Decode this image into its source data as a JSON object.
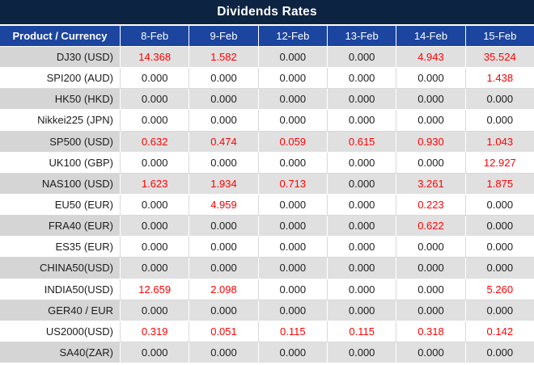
{
  "title": "Dividends Rates",
  "colors": {
    "title_bar": "#0d2342",
    "header_bg": "#1b459e",
    "stripe_gray_label": "#d5d5d5",
    "stripe_gray_value": "#e0e0e0",
    "grid_line": "#d9d9d9",
    "value_red": "#ff0000",
    "value_black": "#1c1c1c",
    "header_text": "#ffffff"
  },
  "table": {
    "product_header": "Product / Currency",
    "date_headers": [
      "8-Feb",
      "9-Feb",
      "12-Feb",
      "13-Feb",
      "14-Feb",
      "15-Feb"
    ],
    "rows": [
      {
        "product": "DJ30 (USD)",
        "values": [
          "14.368",
          "1.582",
          "0.000",
          "0.000",
          "4.943",
          "35.524"
        ],
        "red": [
          true,
          true,
          false,
          false,
          true,
          true
        ]
      },
      {
        "product": "SPI200 (AUD)",
        "values": [
          "0.000",
          "0.000",
          "0.000",
          "0.000",
          "0.000",
          "1.438"
        ],
        "red": [
          false,
          false,
          false,
          false,
          false,
          true
        ]
      },
      {
        "product": "HK50 (HKD)",
        "values": [
          "0.000",
          "0.000",
          "0.000",
          "0.000",
          "0.000",
          "0.000"
        ],
        "red": [
          false,
          false,
          false,
          false,
          false,
          false
        ]
      },
      {
        "product": "Nikkei225 (JPN)",
        "values": [
          "0.000",
          "0.000",
          "0.000",
          "0.000",
          "0.000",
          "0.000"
        ],
        "red": [
          false,
          false,
          false,
          false,
          false,
          false
        ]
      },
      {
        "product": "SP500 (USD)",
        "values": [
          "0.632",
          "0.474",
          "0.059",
          "0.615",
          "0.930",
          "1.043"
        ],
        "red": [
          true,
          true,
          true,
          true,
          true,
          true
        ]
      },
      {
        "product": "UK100 (GBP)",
        "values": [
          "0.000",
          "0.000",
          "0.000",
          "0.000",
          "0.000",
          "12.927"
        ],
        "red": [
          false,
          false,
          false,
          false,
          false,
          true
        ]
      },
      {
        "product": "NAS100 (USD)",
        "values": [
          "1.623",
          "1.934",
          "0.713",
          "0.000",
          "3.261",
          "1.875"
        ],
        "red": [
          true,
          true,
          true,
          false,
          true,
          true
        ]
      },
      {
        "product": "EU50 (EUR)",
        "values": [
          "0.000",
          "4.959",
          "0.000",
          "0.000",
          "0.223",
          "0.000"
        ],
        "red": [
          false,
          true,
          false,
          false,
          true,
          false
        ]
      },
      {
        "product": "FRA40 (EUR)",
        "values": [
          "0.000",
          "0.000",
          "0.000",
          "0.000",
          "0.622",
          "0.000"
        ],
        "red": [
          false,
          false,
          false,
          false,
          true,
          false
        ]
      },
      {
        "product": "ES35 (EUR)",
        "values": [
          "0.000",
          "0.000",
          "0.000",
          "0.000",
          "0.000",
          "0.000"
        ],
        "red": [
          false,
          false,
          false,
          false,
          false,
          false
        ]
      },
      {
        "product": "CHINA50(USD)",
        "values": [
          "0.000",
          "0.000",
          "0.000",
          "0.000",
          "0.000",
          "0.000"
        ],
        "red": [
          false,
          false,
          false,
          false,
          false,
          false
        ]
      },
      {
        "product": "INDIA50(USD)",
        "values": [
          "12.659",
          "2.098",
          "0.000",
          "0.000",
          "0.000",
          "5.260"
        ],
        "red": [
          true,
          true,
          false,
          false,
          false,
          true
        ]
      },
      {
        "product": "GER40 / EUR",
        "values": [
          "0.000",
          "0.000",
          "0.000",
          "0.000",
          "0.000",
          "0.000"
        ],
        "red": [
          false,
          false,
          false,
          false,
          false,
          false
        ]
      },
      {
        "product": "US2000(USD)",
        "values": [
          "0.319",
          "0.051",
          "0.115",
          "0.115",
          "0.318",
          "0.142"
        ],
        "red": [
          true,
          true,
          true,
          true,
          true,
          true
        ]
      },
      {
        "product": "SA40(ZAR)",
        "values": [
          "0.000",
          "0.000",
          "0.000",
          "0.000",
          "0.000",
          "0.000"
        ],
        "red": [
          false,
          false,
          false,
          false,
          false,
          false
        ]
      }
    ]
  }
}
